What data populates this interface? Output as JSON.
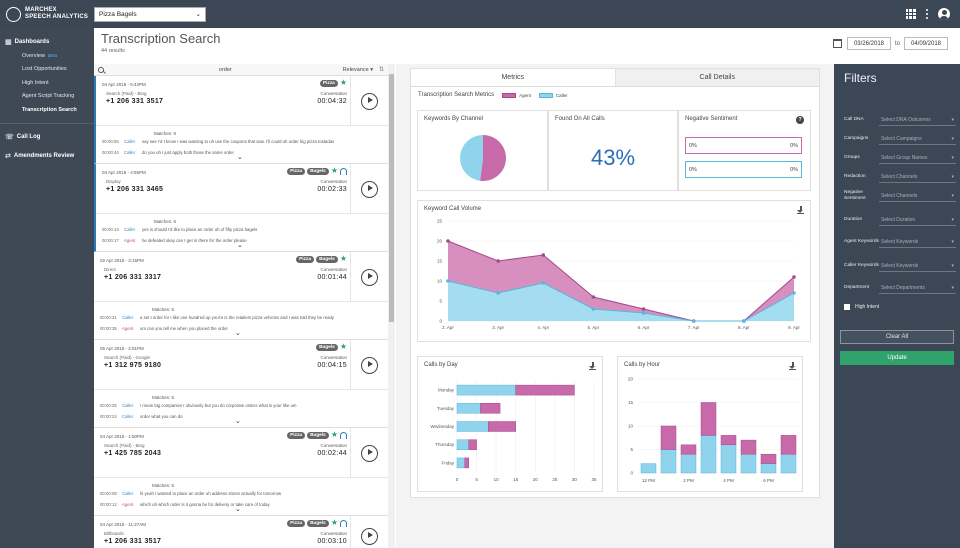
{
  "app": {
    "brand_line1": "MARCHEX",
    "brand_line2": "SPEECH ANALYTICS",
    "account": "Pizza Bagels"
  },
  "sidebar": {
    "section_dashboards": "Dashboards",
    "items": [
      {
        "label": "Overview",
        "badge": "Beta"
      },
      {
        "label": "Lost Opportunities"
      },
      {
        "label": "High Intent"
      },
      {
        "label": "Agent Script Tracking"
      },
      {
        "label": "Transcription Search"
      }
    ],
    "call_log": "Call Log",
    "amendments": "Amendments Review"
  },
  "header": {
    "title": "Transcription Search",
    "results": "44 results",
    "date_from": "03/26/2018",
    "to_label": "to",
    "date_to": "04/09/2018"
  },
  "search": {
    "query": "order",
    "sort": "Relevance"
  },
  "calls": [
    {
      "date": "04 Apr 2018 - 5:42PM",
      "tags": [
        "Pizza"
      ],
      "star": true,
      "hp": false,
      "source": "Search (Paid) - Bing",
      "ctype": "Conversation",
      "phone": "+1 206 331 3517",
      "duration": "00:04:32",
      "matches": "Matches: 9",
      "lines": [
        {
          "ts": "00:00:55",
          "who": "Caller",
          "text": "say see I'd I know I was wanting to uh use the coupons that saw. I'll could uh order big pizza tostadas"
        },
        {
          "ts": "00:00:44",
          "who": "Caller",
          "text": "do you uh I just apply both those the same order"
        }
      ]
    },
    {
      "date": "03 Apr 2018 - 4:55PM",
      "tags": [
        "Pizza",
        "Bagels"
      ],
      "star": true,
      "hp": true,
      "source": "Display",
      "ctype": "Conversation",
      "phone": "+1 206 331 3465",
      "duration": "00:02:33",
      "matches": "Matches: 6",
      "lines": [
        {
          "ts": "00:00:13",
          "who": "Caller",
          "text": "yes is should I'd like to place an order uh of fifty pizza bagels"
        },
        {
          "ts": "00:00:17",
          "who": "Agent",
          "text": "he defeated okay can I get in there for the order please"
        }
      ]
    },
    {
      "date": "02 Apr 2018 - 3:15PM",
      "tags": [
        "Pizza",
        "Bagels"
      ],
      "star": true,
      "hp": false,
      "source": "Direct",
      "ctype": "Conversation",
      "phone": "+1 206 331 3317",
      "duration": "00:01:44",
      "matches": "Matches: 5",
      "lines": [
        {
          "ts": "00:00:21",
          "who": "Caller",
          "text": "a set I order for I like one hundred up you're is the retailers pizza vehicles and I was told they be ready"
        },
        {
          "ts": "00:00:35",
          "who": "Agent",
          "text": "um can you tell me when you placed the order"
        }
      ]
    },
    {
      "date": "05 Apr 2018 - 2:51PM",
      "tags": [
        "Bagels"
      ],
      "star": true,
      "hp": false,
      "source": "Search (Paid) - Google",
      "ctype": "Conversation",
      "phone": "+1 312 975 9180",
      "duration": "00:04:15",
      "matches": "Matches: 5",
      "lines": [
        {
          "ts": "00:00:25",
          "who": "Caller",
          "text": "I mean big companies I obviously but you do corporate orders what is your like um"
        },
        {
          "ts": "00:00:24",
          "who": "Caller",
          "text": "order what you can do"
        }
      ]
    },
    {
      "date": "04 Apr 2018 - 1:50PM",
      "tags": [
        "Pizza",
        "Bagels"
      ],
      "star": true,
      "hp": true,
      "source": "Search (Paid) - Bing",
      "ctype": "Conversation",
      "phone": "+1 425 785 2043",
      "duration": "00:02:44",
      "matches": "Matches: 5",
      "lines": [
        {
          "ts": "00:00:08",
          "who": "Caller",
          "text": "hi yeah I wanted to place an order uh address stores actually for tomorrow"
        },
        {
          "ts": "00:00:12",
          "who": "Agent",
          "text": "which uh which order is it gonna be for delivery or take care of today"
        }
      ]
    },
    {
      "date": "04 Apr 2018 - 11:27AM",
      "tags": [
        "Pizza",
        "Bagels"
      ],
      "star": true,
      "hp": true,
      "source": "Billboards",
      "ctype": "Conversation",
      "phone": "+1 206 331 3517",
      "duration": "00:03:10",
      "matches": "",
      "lines": []
    }
  ],
  "tabs": {
    "metrics": "Metrics",
    "details": "Call Details"
  },
  "metrics": {
    "title": "Transcription Search Metrics",
    "legend_agent": "Agent",
    "legend_caller": "Caller",
    "keywords_by_channel": "Keywords By Channel",
    "found_title": "Found On All Calls",
    "found_value": "43%",
    "neg_title": "Negative Sentiment",
    "help": "?",
    "neg_rows": [
      {
        "left": "0%",
        "right": "0%"
      },
      {
        "left": "0%",
        "right": "0%"
      }
    ],
    "volume_title": "Keyword Call Volume",
    "day_title": "Calls by Day",
    "hour_title": "Calls by Hour"
  },
  "colors": {
    "agent": "#c86aaa",
    "agent_stroke": "#a24a8c",
    "caller": "#8fd4ec",
    "caller_stroke": "#5ab6e0",
    "green": "#2fa36b"
  },
  "chart_data": [
    {
      "type": "pie",
      "title": "Keywords By Channel",
      "labels": [
        "Agent",
        "Caller"
      ],
      "values": [
        52,
        48
      ]
    },
    {
      "type": "area",
      "title": "Keyword Call Volume",
      "x": [
        "2. Apr",
        "3. Apr",
        "4. Apr",
        "5. Apr",
        "6. Apr",
        "7. Apr",
        "8. Apr",
        "9. Apr"
      ],
      "xpos": [
        2,
        3,
        3.9,
        4.9,
        5.9,
        6.9,
        7.9,
        8.9
      ],
      "series": [
        {
          "name": "Caller",
          "values": [
            10,
            7,
            9.5,
            3,
            2,
            0,
            0,
            7
          ]
        },
        {
          "name": "Agent",
          "values": [
            10,
            8,
            7,
            3,
            1,
            0,
            0,
            4
          ]
        }
      ],
      "yticks": [
        0,
        5,
        10,
        15,
        20,
        25
      ],
      "ylim": [
        0,
        25
      ]
    },
    {
      "type": "bar",
      "title": "Calls by Day",
      "orientation": "horizontal",
      "categories": [
        "Monday",
        "Tuesday",
        "Wednesday",
        "Thursday",
        "Friday"
      ],
      "series": [
        {
          "name": "Caller",
          "values": [
            15,
            6,
            8,
            3,
            2
          ]
        },
        {
          "name": "Agent",
          "values": [
            15,
            5,
            7,
            2,
            1
          ]
        }
      ],
      "xticks": [
        0,
        5,
        10,
        15,
        20,
        25,
        30,
        35
      ],
      "xlim": [
        0,
        35
      ]
    },
    {
      "type": "bar",
      "title": "Calls by Hour",
      "stacked": true,
      "categories": [
        "12 PM",
        "1 PM",
        "2 PM",
        "3 PM",
        "4 PM",
        "5 PM",
        "6 PM",
        "7 PM"
      ],
      "series": [
        {
          "name": "Caller",
          "values": [
            2,
            5,
            4,
            8,
            6,
            4,
            2,
            4
          ]
        },
        {
          "name": "Agent",
          "values": [
            0,
            5,
            2,
            7,
            2,
            3,
            2,
            4
          ]
        }
      ],
      "xlabels": [
        "12 PM",
        "2 PM",
        "4 PM",
        "6 PM"
      ],
      "yticks": [
        0,
        5,
        10,
        15,
        20
      ],
      "ylim": [
        0,
        20
      ]
    }
  ],
  "filters": {
    "title": "Filters",
    "rows": [
      {
        "label": "Call DNA",
        "placeholder": "Select DNA Outcomes"
      },
      {
        "label": "Campaigns",
        "placeholder": "Select Campaigns"
      },
      {
        "label": "Groups",
        "placeholder": "Select Group Names"
      },
      {
        "label": "Redaction",
        "placeholder": "Select Channels"
      },
      {
        "label": "Negative Sentiment",
        "placeholder": "Select Channels"
      },
      {
        "label": "Duration",
        "placeholder": "Select Duration"
      },
      {
        "label": "Agent Keywords",
        "placeholder": "Select Keywords"
      },
      {
        "label": "Caller Keywords",
        "placeholder": "Select Keywords"
      },
      {
        "label": "Department",
        "placeholder": "Select Departments"
      }
    ],
    "high_intent": "High Intent",
    "clear": "Clear All",
    "update": "Update"
  }
}
